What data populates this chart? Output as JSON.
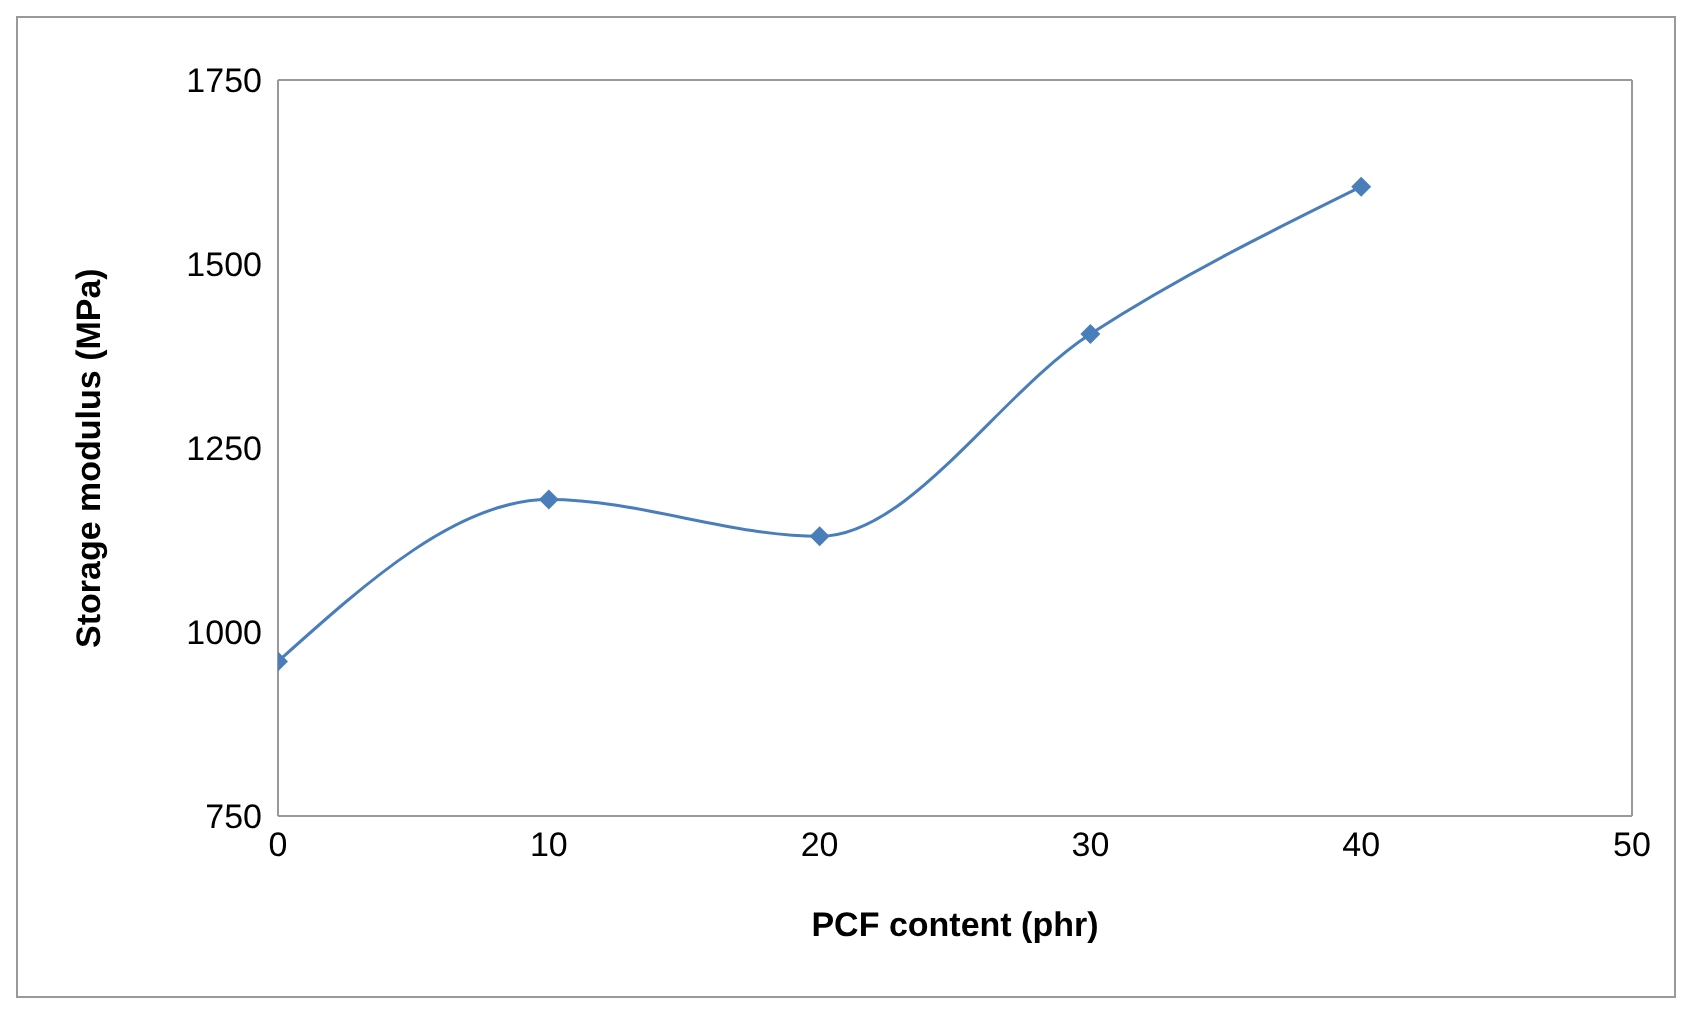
{
  "chart_data": {
    "type": "line",
    "xlabel": "PCF content (phr)",
    "ylabel": "Storage modulus (MPa)",
    "x": [
      0,
      10,
      20,
      30,
      40
    ],
    "series": [
      {
        "color": "#4a7ebb",
        "values": [
          960,
          1180,
          1130,
          1405,
          1605
        ]
      }
    ],
    "xlim": [
      0,
      50
    ],
    "xticks": [
      0,
      10,
      20,
      30,
      40,
      50
    ],
    "ylim": [
      750,
      1750
    ],
    "yticks": [
      750,
      1000,
      1250,
      1500,
      1750
    ],
    "grid": false,
    "legend": false,
    "marker": "diamond",
    "line_style": "solid"
  }
}
